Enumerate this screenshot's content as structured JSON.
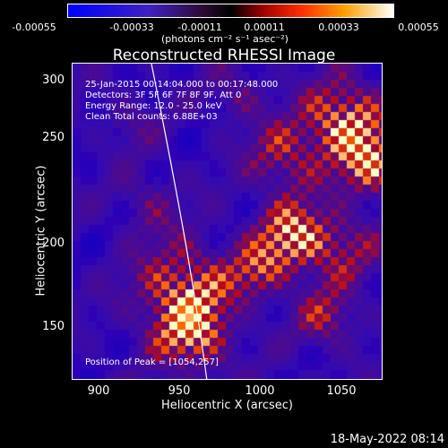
{
  "colorbar": {
    "ticks": [
      "-0.00055",
      "-0.00033",
      "-0.00011",
      "0.00011",
      "0.00033",
      "0.00055"
    ],
    "units": "(photons cm⁻² s⁻¹ asec⁻²)"
  },
  "title": "Reconstructed RHESSI Image",
  "info": {
    "time_range": "25-Jan-2015 00:14:04.000 to 00:17:48.000",
    "detectors": "Detectors: 3F 5F 6F 7F 8F 9F, Att 0",
    "energy": "Energy Range: 12.0 - 25.0 keV",
    "clean": "Clean     Total counts: 6.88E+03",
    "peak": "Position of Peak = [1054,257]"
  },
  "axes": {
    "xlabel": "Heliocentric X (arcsec)",
    "ylabel": "Heliocentric Y (arcsec)",
    "xticks": [
      "900",
      "950",
      "1000",
      "1050"
    ],
    "yticks": [
      "300",
      "250",
      "200",
      "150"
    ]
  },
  "datestamp": "18-May-2022 08:14"
}
